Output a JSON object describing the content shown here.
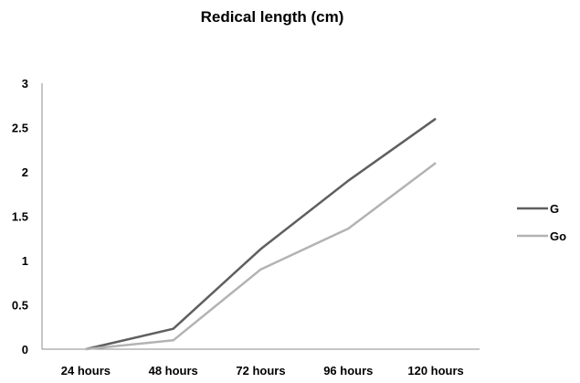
{
  "chart_data": {
    "type": "line",
    "title": "Redical length (cm)",
    "xlabel": "",
    "ylabel": "",
    "categories": [
      "24 hours",
      "48 hours",
      "72 hours",
      "96 hours",
      "120 hours"
    ],
    "ylim": [
      0,
      3
    ],
    "yticks": [
      0,
      0.5,
      1,
      1.5,
      2,
      2.5,
      3
    ],
    "grid": false,
    "legend": "right",
    "series": [
      {
        "name": "G",
        "values": [
          0,
          0.23,
          1.13,
          1.9,
          2.6
        ],
        "color": "#5f5f5f"
      },
      {
        "name": "Go",
        "values": [
          0,
          0.1,
          0.9,
          1.36,
          2.1
        ],
        "color": "#b3b3b3"
      }
    ]
  }
}
